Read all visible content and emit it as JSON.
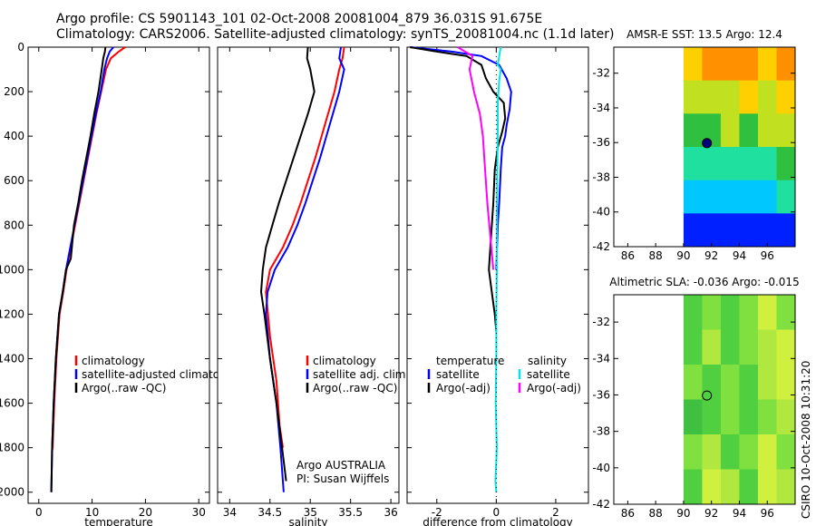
{
  "header": {
    "line1": "Argo profile: CS 5901143_101 02-Oct-2008 20081004_879 36.031S 91.675E",
    "line2": "Climatology: CARS2006. Satellite-adjusted climatology: synTS_20081004.nc (1.1d later)"
  },
  "side_label": "CSIRO 10-Oct-2008 10:31:20",
  "colors": {
    "climatology": "#ff0000",
    "satellite": "#0000ff",
    "argo": "#000000",
    "cyan": "#00e5e5",
    "magenta": "#ff00ff",
    "marker": "#000080"
  },
  "chart_data": [
    {
      "type": "line",
      "id": "temperature",
      "xlabel": "temperature",
      "ylabel": "",
      "xlim": [
        -2,
        32
      ],
      "ylim": [
        0,
        2050
      ],
      "y_reversed": true,
      "xticks": [
        0,
        10,
        20,
        30
      ],
      "yticks": [
        0,
        200,
        400,
        600,
        800,
        1000,
        1200,
        1400,
        1600,
        1800,
        2000
      ],
      "legend": [
        {
          "label": "climatology",
          "series": "climatology"
        },
        {
          "label": "satellite-adjusted climatolog",
          "series": "satellite"
        },
        {
          "label": "Argo(..raw -QC)",
          "series": "argo"
        }
      ],
      "series": [
        {
          "name": "climatology",
          "color": "#ff0000",
          "x": [
            16.2,
            15.0,
            13.5,
            12.6,
            11.7,
            10.8,
            10.0,
            9.2,
            8.4,
            7.6,
            6.8,
            5.2,
            4.6,
            3.9,
            3.3,
            2.9,
            2.6,
            2.45
          ],
          "y": [
            0,
            20,
            50,
            100,
            200,
            300,
            400,
            500,
            600,
            700,
            800,
            1000,
            1100,
            1200,
            1400,
            1600,
            1800,
            1820
          ]
        },
        {
          "name": "satellite",
          "color": "#0000ff",
          "x": [
            14.0,
            13.3,
            12.8,
            12.3,
            11.6,
            10.7,
            9.9,
            9.1,
            8.3,
            7.5,
            6.7,
            5.1,
            4.5,
            3.8,
            3.2,
            2.8,
            2.5,
            2.35
          ],
          "y": [
            0,
            20,
            50,
            100,
            200,
            300,
            400,
            500,
            600,
            700,
            800,
            1000,
            1100,
            1200,
            1400,
            1600,
            1800,
            2000
          ]
        },
        {
          "name": "argo",
          "color": "#000000",
          "x": [
            12.5,
            12.4,
            12.1,
            11.8,
            11.2,
            10.4,
            9.7,
            8.9,
            8.1,
            7.4,
            6.6,
            6.0,
            5.1,
            4.5,
            3.8,
            3.2,
            2.8,
            2.5,
            2.35
          ],
          "y": [
            0,
            20,
            50,
            100,
            200,
            300,
            400,
            500,
            600,
            700,
            800,
            950,
            1000,
            1100,
            1200,
            1400,
            1600,
            1800,
            2000
          ]
        }
      ]
    },
    {
      "type": "line",
      "id": "salinity",
      "xlabel": "salinity",
      "xlim": [
        33.85,
        36.1
      ],
      "ylim": [
        0,
        2050
      ],
      "y_reversed": true,
      "xticks": [
        34,
        34.5,
        35,
        35.5,
        36
      ],
      "legend": [
        {
          "label": "climatology",
          "series": "climatology"
        },
        {
          "label": "satellite adj. clim.",
          "series": "satellite"
        },
        {
          "label": "Argo(..raw -QC)",
          "series": "argo"
        }
      ],
      "annotations": [
        "Argo AUSTRALIA",
        "PI: Susan Wijffels"
      ],
      "series": [
        {
          "name": "climatology",
          "color": "#ff0000",
          "x": [
            35.42,
            35.4,
            35.36,
            35.3,
            35.22,
            35.14,
            35.06,
            34.97,
            34.88,
            34.78,
            34.66,
            34.5,
            34.45,
            34.5,
            34.58,
            34.62,
            34.66
          ],
          "y": [
            0,
            50,
            100,
            200,
            300,
            400,
            500,
            600,
            700,
            800,
            900,
            1000,
            1100,
            1300,
            1500,
            1700,
            1800
          ]
        },
        {
          "name": "satellite",
          "color": "#0000ff",
          "x": [
            35.38,
            35.36,
            35.42,
            35.36,
            35.28,
            35.2,
            35.12,
            35.03,
            34.94,
            34.84,
            34.72,
            34.56,
            34.47,
            34.45,
            34.5,
            34.58,
            34.63,
            34.67
          ],
          "y": [
            0,
            50,
            100,
            200,
            300,
            400,
            500,
            600,
            700,
            800,
            900,
            1000,
            1100,
            1200,
            1400,
            1600,
            1800,
            2000
          ]
        },
        {
          "name": "argo",
          "color": "#000000",
          "x": [
            34.97,
            34.96,
            35.0,
            35.05,
            34.97,
            34.88,
            34.79,
            34.7,
            34.61,
            34.53,
            34.45,
            34.41,
            34.39,
            34.43,
            34.5,
            34.58,
            34.65,
            34.7
          ],
          "y": [
            0,
            50,
            100,
            200,
            300,
            400,
            500,
            600,
            700,
            800,
            900,
            1000,
            1100,
            1200,
            1400,
            1600,
            1800,
            1950
          ]
        }
      ]
    },
    {
      "type": "line",
      "id": "difference",
      "xlabel": "difference from climatology",
      "xlim": [
        -3,
        3.1
      ],
      "ylim": [
        0,
        2050
      ],
      "y_reversed": true,
      "xticks": [
        -2,
        0,
        2
      ],
      "legend_groups": [
        {
          "heading": "temperature",
          "entries": [
            {
              "label": "satellite",
              "series": "t_satellite"
            },
            {
              "label": "Argo(-adj)",
              "series": "t_argo"
            }
          ]
        },
        {
          "heading": "salinity",
          "entries": [
            {
              "label": "satellite",
              "series": "s_satellite"
            },
            {
              "label": "Argo(-adj)",
              "series": "s_argo"
            }
          ]
        }
      ],
      "series": [
        {
          "name": "t_satellite",
          "color": "#0000ff",
          "x": [
            -2.9,
            -1.5,
            -0.5,
            0.1,
            0.35,
            0.5,
            0.45,
            0.35,
            0.3,
            0.2,
            0.15,
            0.1,
            0.05,
            0.0
          ],
          "y": [
            0,
            20,
            40,
            80,
            140,
            200,
            280,
            350,
            400,
            450,
            550,
            700,
            800,
            1000
          ]
        },
        {
          "name": "t_argo",
          "color": "#000000",
          "x": [
            -2.9,
            -2.0,
            -1.0,
            -0.5,
            -0.35,
            -0.1,
            0.25,
            0.3,
            0.2,
            0.05,
            -0.05,
            -0.1,
            -0.2,
            -0.25,
            -0.15,
            -0.05,
            0.0
          ],
          "y": [
            0,
            20,
            40,
            80,
            140,
            200,
            250,
            320,
            380,
            450,
            550,
            700,
            900,
            1000,
            1100,
            1200,
            1280
          ]
        },
        {
          "name": "s_satellite",
          "color": "#00e5e5",
          "x": [
            0.15,
            0.1,
            0.05,
            0.15,
            0.1,
            0.05,
            0.05,
            0.03,
            0.02,
            0.02,
            0.0,
            0.0,
            -0.02,
            0.02,
            -0.03,
            0.0
          ],
          "y": [
            0,
            40,
            80,
            100,
            150,
            250,
            400,
            600,
            800,
            1000,
            1200,
            1400,
            1600,
            1800,
            1950,
            2000
          ]
        },
        {
          "name": "s_argo",
          "color": "#ff00ff",
          "x": [
            -1.3,
            -0.8,
            -0.9,
            -0.75,
            -0.55,
            -0.45,
            -0.4,
            -0.3,
            -0.2,
            -0.1
          ],
          "y": [
            0,
            40,
            100,
            200,
            300,
            400,
            500,
            700,
            850,
            1000
          ]
        }
      ]
    },
    {
      "type": "heatmap",
      "id": "sst_map",
      "title": "AMSR-E SST: 13.5 Argo: 12.4",
      "xlim": [
        85,
        98
      ],
      "ylim": [
        -42,
        -30.5
      ],
      "xticks": [
        86,
        88,
        90,
        92,
        94,
        96
      ],
      "yticks": [
        -42,
        -40,
        -38,
        -36,
        -34,
        -32
      ],
      "data_x_range": [
        90,
        98
      ],
      "marker": {
        "lon": 91.675,
        "lat": -36.031
      },
      "rows_lat": [
        -31,
        -33,
        -35,
        -37,
        -39,
        -41
      ],
      "values": [
        [
          15.5,
          15.8,
          15.6,
          16.0,
          15.4,
          15.9
        ],
        [
          14.5,
          14.8,
          14.6,
          15.0,
          14.7,
          14.9
        ],
        [
          13.8,
          14.0,
          14.2,
          13.9,
          14.1,
          14.3
        ],
        [
          12.5,
          12.8,
          13.0,
          12.6,
          12.9,
          13.2
        ],
        [
          11.3,
          11.6,
          11.8,
          11.5,
          12.0,
          12.3
        ],
        [
          10.6,
          10.8,
          10.9,
          10.7,
          11.0,
          11.2
        ]
      ]
    },
    {
      "type": "heatmap",
      "id": "sla_map",
      "title": "Altimetric SLA: -0.036 Argo: -0.015",
      "xlim": [
        85,
        98
      ],
      "ylim": [
        -42,
        -30.5
      ],
      "xticks": [
        86,
        88,
        90,
        92,
        94,
        96
      ],
      "yticks": [
        -42,
        -40,
        -38,
        -36,
        -34,
        -32
      ],
      "data_x_range": [
        90,
        98
      ],
      "marker": {
        "lon": 91.675,
        "lat": -36.031
      },
      "rows_lat": [
        -31,
        -33,
        -35,
        -37,
        -39,
        -41
      ],
      "values": [
        [
          -0.02,
          0.01,
          -0.03,
          0.02,
          0.05,
          0.0
        ],
        [
          -0.03,
          0.03,
          -0.02,
          0.0,
          0.04,
          0.06
        ],
        [
          0.0,
          -0.02,
          0.01,
          -0.03,
          0.03,
          0.05
        ],
        [
          -0.04,
          -0.01,
          0.02,
          -0.02,
          0.0,
          0.04
        ],
        [
          0.01,
          0.04,
          -0.03,
          0.0,
          0.05,
          0.02
        ],
        [
          -0.02,
          0.05,
          0.03,
          -0.01,
          0.06,
          0.04
        ]
      ]
    }
  ]
}
